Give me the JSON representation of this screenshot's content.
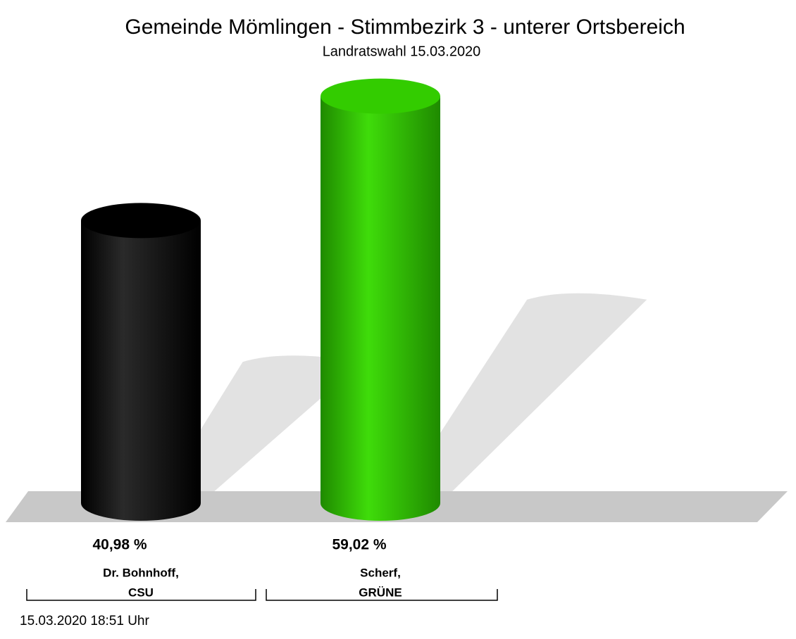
{
  "chart_data": {
    "type": "bar3d",
    "title": "Gemeinde Mömlingen - Stimmbezirk 3 - unterer Ortsbereich",
    "subtitle": "Landratswahl 15.03.2020",
    "categories": [
      [
        "Dr. Bohnhoff,",
        "CSU"
      ],
      [
        "Scherf,",
        "GRÜNE"
      ]
    ],
    "values": [
      40.98,
      59.02
    ],
    "value_labels": [
      "40,98 %",
      "59,02 %"
    ],
    "colors": [
      "#000000",
      "#33cc00"
    ],
    "footer": "15.03.2020 18:51 Uhr"
  }
}
